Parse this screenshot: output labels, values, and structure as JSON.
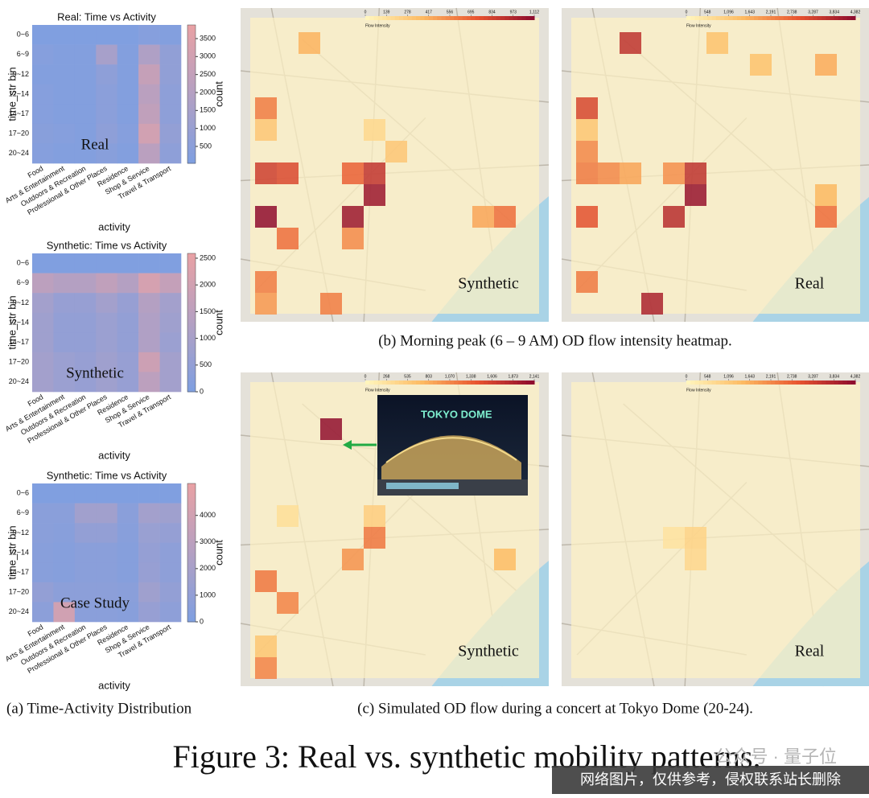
{
  "figure_title": "Figure 3: Real vs. synthetic mobility patterns.",
  "captions": {
    "a": "(a) Time-Activity Distribution",
    "b": "(b) Morning peak (6 – 9 AM) OD flow intensity heatmap.",
    "c": "(c) Simulated OD flow during a concert at Tokyo Dome (20-24)."
  },
  "photo_text": "TOKYO DOME",
  "watermark_logo": "公众号 · 量子位",
  "watermark_notice": "网络图片，仅供参考，侵权联系站长删除",
  "chart_data": [
    {
      "type": "heatmap",
      "title": "Real: Time vs Activity",
      "x_label": "activity",
      "y_label": "time_str bin",
      "colorbar_label": "count",
      "overlay_label": "Real",
      "categories": [
        "Food",
        "Arts & Entertainment",
        "Outdoors & Recreation",
        "Professional & Other Places",
        "Residence",
        "Shop & Service",
        "Travel & Transport"
      ],
      "y_categories": [
        "0~6",
        "6~9",
        "9~12",
        "12~14",
        "14~17",
        "17~20",
        "20~24"
      ],
      "values": [
        [
          100,
          100,
          100,
          100,
          100,
          300,
          200
        ],
        [
          300,
          200,
          200,
          1500,
          200,
          1800,
          700
        ],
        [
          200,
          200,
          200,
          600,
          200,
          2600,
          700
        ],
        [
          300,
          200,
          200,
          500,
          200,
          2200,
          600
        ],
        [
          300,
          200,
          200,
          500,
          200,
          2400,
          600
        ],
        [
          400,
          300,
          200,
          600,
          300,
          3000,
          800
        ],
        [
          300,
          200,
          200,
          400,
          200,
          2200,
          600
        ]
      ],
      "clim": [
        30,
        3880
      ],
      "cticks": [
        500,
        1000,
        1500,
        2000,
        2500,
        3000,
        3500
      ],
      "colors": [
        "#7e9fe1",
        "#e9a1a4"
      ]
    },
    {
      "type": "heatmap",
      "title": "Synthetic: Time vs Activity",
      "x_label": "activity",
      "y_label": "time_str bin",
      "colorbar_label": "count",
      "overlay_label": "Synthetic",
      "categories": [
        "Food",
        "Arts & Entertainment",
        "Outdoors & Recreation",
        "Professional & Other Places",
        "Residence",
        "Shop & Service",
        "Travel & Transport"
      ],
      "y_categories": [
        "0~6",
        "6~9",
        "9~12",
        "12~14",
        "14~17",
        "17~20",
        "20~24"
      ],
      "values": [
        [
          50,
          50,
          50,
          50,
          50,
          50,
          50
        ],
        [
          1500,
          1300,
          1300,
          1600,
          1300,
          2100,
          1700
        ],
        [
          900,
          600,
          600,
          900,
          600,
          1300,
          900
        ],
        [
          800,
          500,
          500,
          700,
          500,
          1200,
          800
        ],
        [
          800,
          500,
          500,
          700,
          500,
          1200,
          700
        ],
        [
          900,
          700,
          600,
          800,
          600,
          1900,
          900
        ],
        [
          900,
          700,
          600,
          800,
          600,
          1500,
          900
        ]
      ],
      "clim": [
        0,
        2590
      ],
      "cticks": [
        0,
        500,
        1000,
        1500,
        2000,
        2500
      ],
      "colors": [
        "#7e9fe1",
        "#e9a1a4"
      ]
    },
    {
      "type": "heatmap",
      "title": "Synthetic: Time vs Activity",
      "x_label": "activity",
      "y_label": "time_str bin",
      "colorbar_label": "count",
      "overlay_label": "Case Study",
      "categories": [
        "Food",
        "Arts & Entertainment",
        "Outdoors & Recreation",
        "Professional & Other Places",
        "Residence",
        "Shop & Service",
        "Travel & Transport"
      ],
      "y_categories": [
        "0~6",
        "6~9",
        "9~12",
        "12~14",
        "14~17",
        "17~20",
        "20~24"
      ],
      "values": [
        [
          100,
          100,
          100,
          100,
          100,
          100,
          100
        ],
        [
          600,
          600,
          1700,
          1700,
          600,
          1800,
          1600
        ],
        [
          600,
          500,
          1000,
          1000,
          500,
          1300,
          1100
        ],
        [
          500,
          400,
          600,
          600,
          400,
          1100,
          800
        ],
        [
          500,
          400,
          600,
          600,
          400,
          1200,
          800
        ],
        [
          1000,
          700,
          700,
          700,
          600,
          1600,
          1000
        ],
        [
          700,
          4000,
          600,
          600,
          500,
          1200,
          800
        ]
      ],
      "clim": [
        0,
        5200
      ],
      "cticks": [
        0,
        1000,
        2000,
        3000,
        4000
      ],
      "colors": [
        "#7e9fe1",
        "#e9a1a4"
      ]
    },
    {
      "type": "map_heatmap",
      "colorbar_label": "Flow Intensity",
      "overlay_label": "Synthetic",
      "clim": [
        0,
        1112
      ],
      "cticks": [
        0,
        139,
        278,
        417,
        556,
        695,
        834,
        973,
        {
          "value": 1112,
          "label": "1,112"
        }
      ],
      "colors": [
        "#fff7bf",
        "#fdbb63",
        "#e8542f",
        "#8c0a2e"
      ],
      "cells": [
        {
          "row": 1,
          "col": 2,
          "value": 400
        },
        {
          "row": 4,
          "col": 0,
          "value": 600
        },
        {
          "row": 5,
          "col": 0,
          "value": 300
        },
        {
          "row": 7,
          "col": 0,
          "value": 850
        },
        {
          "row": 7,
          "col": 1,
          "value": 800
        },
        {
          "row": 7,
          "col": 4,
          "value": 700
        },
        {
          "row": 7,
          "col": 5,
          "value": 900
        },
        {
          "row": 8,
          "col": 5,
          "value": 1050
        },
        {
          "row": 9,
          "col": 0,
          "value": 1100
        },
        {
          "row": 9,
          "col": 4,
          "value": 1050
        },
        {
          "row": 9,
          "col": 10,
          "value": 450
        },
        {
          "row": 9,
          "col": 11,
          "value": 650
        },
        {
          "row": 10,
          "col": 1,
          "value": 650
        },
        {
          "row": 10,
          "col": 4,
          "value": 550
        },
        {
          "row": 12,
          "col": 0,
          "value": 600
        },
        {
          "row": 13,
          "col": 0,
          "value": 500
        },
        {
          "row": 13,
          "col": 3,
          "value": 600
        },
        {
          "row": 6,
          "col": 6,
          "value": 300
        },
        {
          "row": 5,
          "col": 5,
          "value": 200
        }
      ]
    },
    {
      "type": "map_heatmap",
      "colorbar_label": "Flow Intensity",
      "overlay_label": "Real",
      "clim": [
        0,
        4382
      ],
      "cticks": [
        0,
        548,
        {
          "value": 1096,
          "label": "1,096"
        },
        {
          "value": 1643,
          "label": "1,643"
        },
        {
          "value": 2191,
          "label": "2,191"
        },
        {
          "value": 2738,
          "label": "2,738"
        },
        {
          "value": 3287,
          "label": "3,287"
        },
        {
          "value": 3834,
          "label": "3,834"
        },
        {
          "value": 4382,
          "label": "4,382"
        }
      ],
      "colors": [
        "#fff7bf",
        "#fdbb63",
        "#e8542f",
        "#8c0a2e"
      ],
      "cells": [
        {
          "row": 1,
          "col": 2,
          "value": 3600
        },
        {
          "row": 1,
          "col": 6,
          "value": 1300
        },
        {
          "row": 2,
          "col": 8,
          "value": 1300
        },
        {
          "row": 2,
          "col": 11,
          "value": 1700
        },
        {
          "row": 4,
          "col": 0,
          "value": 3200
        },
        {
          "row": 5,
          "col": 0,
          "value": 1200
        },
        {
          "row": 6,
          "col": 0,
          "value": 2200
        },
        {
          "row": 7,
          "col": 0,
          "value": 2400
        },
        {
          "row": 7,
          "col": 1,
          "value": 2200
        },
        {
          "row": 7,
          "col": 2,
          "value": 1800
        },
        {
          "row": 7,
          "col": 4,
          "value": 2100
        },
        {
          "row": 7,
          "col": 5,
          "value": 3600
        },
        {
          "row": 8,
          "col": 5,
          "value": 4200
        },
        {
          "row": 9,
          "col": 0,
          "value": 3000
        },
        {
          "row": 9,
          "col": 4,
          "value": 3700
        },
        {
          "row": 9,
          "col": 11,
          "value": 2600
        },
        {
          "row": 8,
          "col": 11,
          "value": 1500
        },
        {
          "row": 12,
          "col": 0,
          "value": 2400
        },
        {
          "row": 13,
          "col": 3,
          "value": 3900
        }
      ]
    },
    {
      "type": "map_heatmap",
      "colorbar_label": "Flow Intensity",
      "overlay_label": "Synthetic",
      "clim": [
        0,
        2141
      ],
      "cticks": [
        0,
        268,
        535,
        803,
        {
          "value": 1070,
          "label": "1,070"
        },
        {
          "value": 1338,
          "label": "1,338"
        },
        {
          "value": 1606,
          "label": "1,606"
        },
        {
          "value": 1873,
          "label": "1,873"
        },
        {
          "value": 2141,
          "label": "2,141"
        }
      ],
      "colors": [
        "#fff7bf",
        "#fdbb63",
        "#e8542f",
        "#8c0a2e"
      ],
      "cells": [
        {
          "row": 2,
          "col": 3,
          "value": 2100
        },
        {
          "row": 6,
          "col": 1,
          "value": 300
        },
        {
          "row": 6,
          "col": 5,
          "value": 500
        },
        {
          "row": 7,
          "col": 5,
          "value": 1200
        },
        {
          "row": 8,
          "col": 4,
          "value": 1000
        },
        {
          "row": 9,
          "col": 0,
          "value": 1200
        },
        {
          "row": 10,
          "col": 1,
          "value": 1100
        },
        {
          "row": 8,
          "col": 11,
          "value": 700
        },
        {
          "row": 12,
          "col": 0,
          "value": 600
        },
        {
          "row": 13,
          "col": 0,
          "value": 1100
        }
      ]
    },
    {
      "type": "map_heatmap",
      "colorbar_label": "Flow Intensity",
      "overlay_label": "Real",
      "clim": [
        0,
        4382
      ],
      "cticks": [
        0,
        548,
        {
          "value": 1096,
          "label": "1,096"
        },
        {
          "value": 1643,
          "label": "1,643"
        },
        {
          "value": 2191,
          "label": "2,191"
        },
        {
          "value": 2738,
          "label": "2,738"
        },
        {
          "value": 3287,
          "label": "3,287"
        },
        {
          "value": 3834,
          "label": "3,834"
        },
        {
          "value": 4382,
          "label": "4,382"
        }
      ],
      "colors": [
        "#fff7bf",
        "#fdbb63",
        "#e8542f",
        "#8c0a2e"
      ],
      "cells": [
        {
          "row": 7,
          "col": 5,
          "value": 900
        },
        {
          "row": 8,
          "col": 5,
          "value": 800
        },
        {
          "row": 7,
          "col": 4,
          "value": 500
        }
      ]
    }
  ]
}
